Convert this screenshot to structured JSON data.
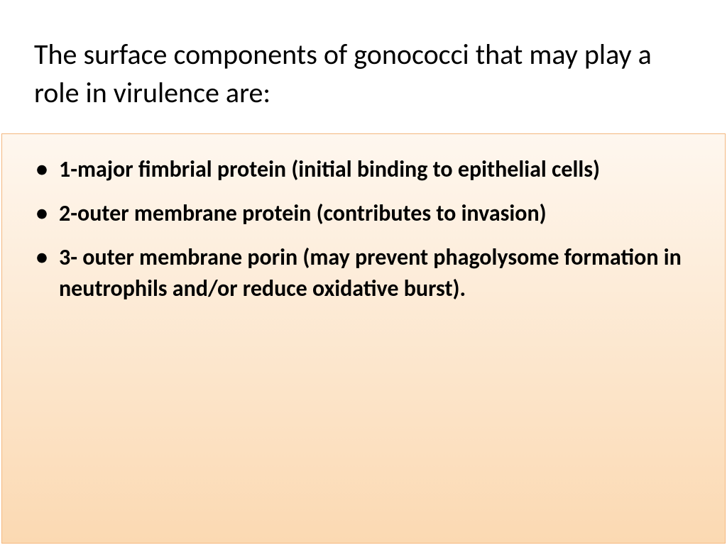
{
  "slide": {
    "title": "The surface components of gonococci that may play a role in virulence are:",
    "title_fontsize": 40,
    "title_fontweight": 400,
    "title_color": "#000000",
    "background_color": "#ffffff",
    "bullets": [
      "1-major fimbrial protein (initial binding to epithelial cells)",
      "2-outer membrane protein (contributes to invasion)",
      "3- outer membrane porin (may prevent phagolysome formation in neutrophils and/or reduce oxidative burst)."
    ],
    "bullet_fontsize": 32,
    "bullet_fontweight": 700,
    "bullet_color": "#000000",
    "content_box": {
      "gradient_top": "#fef7ef",
      "gradient_bottom": "#fbd9b2",
      "border_color": "#f4b77e"
    }
  }
}
